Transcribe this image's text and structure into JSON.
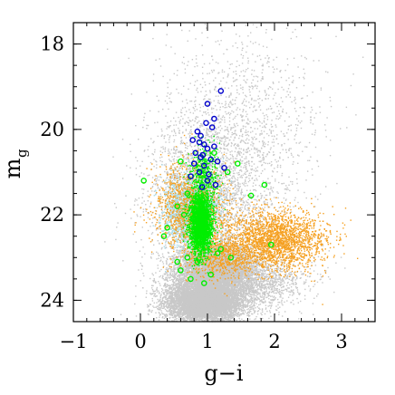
{
  "chart_data": {
    "type": "scatter",
    "title": "",
    "xlabel": "g−i",
    "ylabel": "m",
    "ylabel_subscript": "g",
    "xlim": [
      -1.0,
      3.5
    ],
    "ylim": [
      24.5,
      17.5
    ],
    "y_inverted": true,
    "x_ticks": [
      -1,
      0,
      1,
      2,
      3
    ],
    "x_tick_labels": [
      "−1",
      "0",
      "1",
      "2",
      "3"
    ],
    "y_ticks": [
      18,
      20,
      22,
      24
    ],
    "y_tick_labels": [
      "18",
      "20",
      "22",
      "24"
    ],
    "grid": false,
    "legend": "none",
    "colors": {
      "field": "#c8c8c8",
      "light_blue": "#a9dbe6",
      "orange": "#f5a021",
      "green": "#00ee00",
      "blue": "#0000cc"
    },
    "series": [
      {
        "marker": "dot",
        "color": "#c8c8c8",
        "density_regions": [
          {
            "x": 0.95,
            "y": 24.05,
            "sx": 0.55,
            "sy": 0.45,
            "n": 7000
          },
          {
            "x": 1.1,
            "y": 23.3,
            "sx": 0.6,
            "sy": 0.6,
            "n": 4500
          },
          {
            "x": 1.4,
            "y": 23.6,
            "sx": 1.0,
            "sy": 0.7,
            "n": 2500
          },
          {
            "x": 1.0,
            "y": 21.5,
            "sx": 0.9,
            "sy": 1.8,
            "n": 2500
          },
          {
            "x": 1.5,
            "y": 20.0,
            "sx": 1.2,
            "sy": 2.5,
            "n": 1200
          }
        ]
      },
      {
        "marker": "dot",
        "color": "#a9dbe6",
        "density_regions": [
          {
            "x": 0.75,
            "y": 21.9,
            "sx": 0.38,
            "sy": 0.8,
            "n": 2000
          }
        ]
      },
      {
        "marker": "dot",
        "color": "#f5a021",
        "density_regions": [
          {
            "x": 0.75,
            "y": 21.8,
            "sx": 0.55,
            "sy": 1.0,
            "n": 1200
          },
          {
            "x": 2.0,
            "y": 22.6,
            "sx": 0.75,
            "sy": 0.7,
            "n": 2200
          },
          {
            "x": 1.2,
            "y": 23.0,
            "sx": 0.5,
            "sy": 0.5,
            "n": 600
          }
        ]
      },
      {
        "marker": "dot",
        "color": "#00ee00",
        "density_regions": [
          {
            "x": 0.9,
            "y": 22.2,
            "sx": 0.17,
            "sy": 0.7,
            "n": 2800
          },
          {
            "x": 0.95,
            "y": 21.0,
            "sx": 0.2,
            "sy": 0.6,
            "n": 400
          }
        ]
      },
      {
        "marker": "open-circle",
        "color": "#00ee00",
        "x": [
          0.05,
          0.35,
          0.55,
          0.6,
          1.3,
          1.45,
          1.65,
          1.85,
          1.95,
          0.65,
          0.7,
          0.75,
          1.05,
          1.15,
          0.85,
          0.95,
          1.2,
          0.4,
          0.55,
          1.35,
          0.7,
          0.9,
          1.0,
          0.6,
          1.1
        ],
        "y": [
          21.2,
          22.5,
          23.1,
          20.75,
          21.0,
          20.8,
          21.55,
          21.3,
          22.7,
          22.0,
          23.0,
          23.5,
          23.4,
          22.9,
          23.1,
          23.6,
          22.8,
          22.3,
          21.8,
          23.0,
          21.5,
          21.9,
          22.4,
          23.3,
          20.55
        ],
        "n": 25
      },
      {
        "marker": "open-circle",
        "color": "#0000cc",
        "x": [
          1.2,
          1.0,
          1.1,
          0.98,
          1.07,
          0.85,
          0.9,
          0.78,
          0.88,
          0.95,
          1.1,
          1.0,
          0.82,
          0.93,
          0.9,
          1.05,
          1.15,
          0.8,
          0.95,
          1.25,
          0.88,
          1.02,
          0.75,
          1.0,
          1.12,
          0.92
        ],
        "y": [
          19.1,
          19.4,
          19.75,
          19.85,
          19.95,
          20.05,
          20.15,
          20.25,
          20.3,
          20.35,
          20.4,
          20.45,
          20.55,
          20.6,
          20.65,
          20.7,
          20.75,
          20.8,
          20.85,
          20.9,
          21.0,
          21.05,
          21.1,
          21.2,
          21.3,
          21.35
        ],
        "n": 26
      }
    ]
  }
}
